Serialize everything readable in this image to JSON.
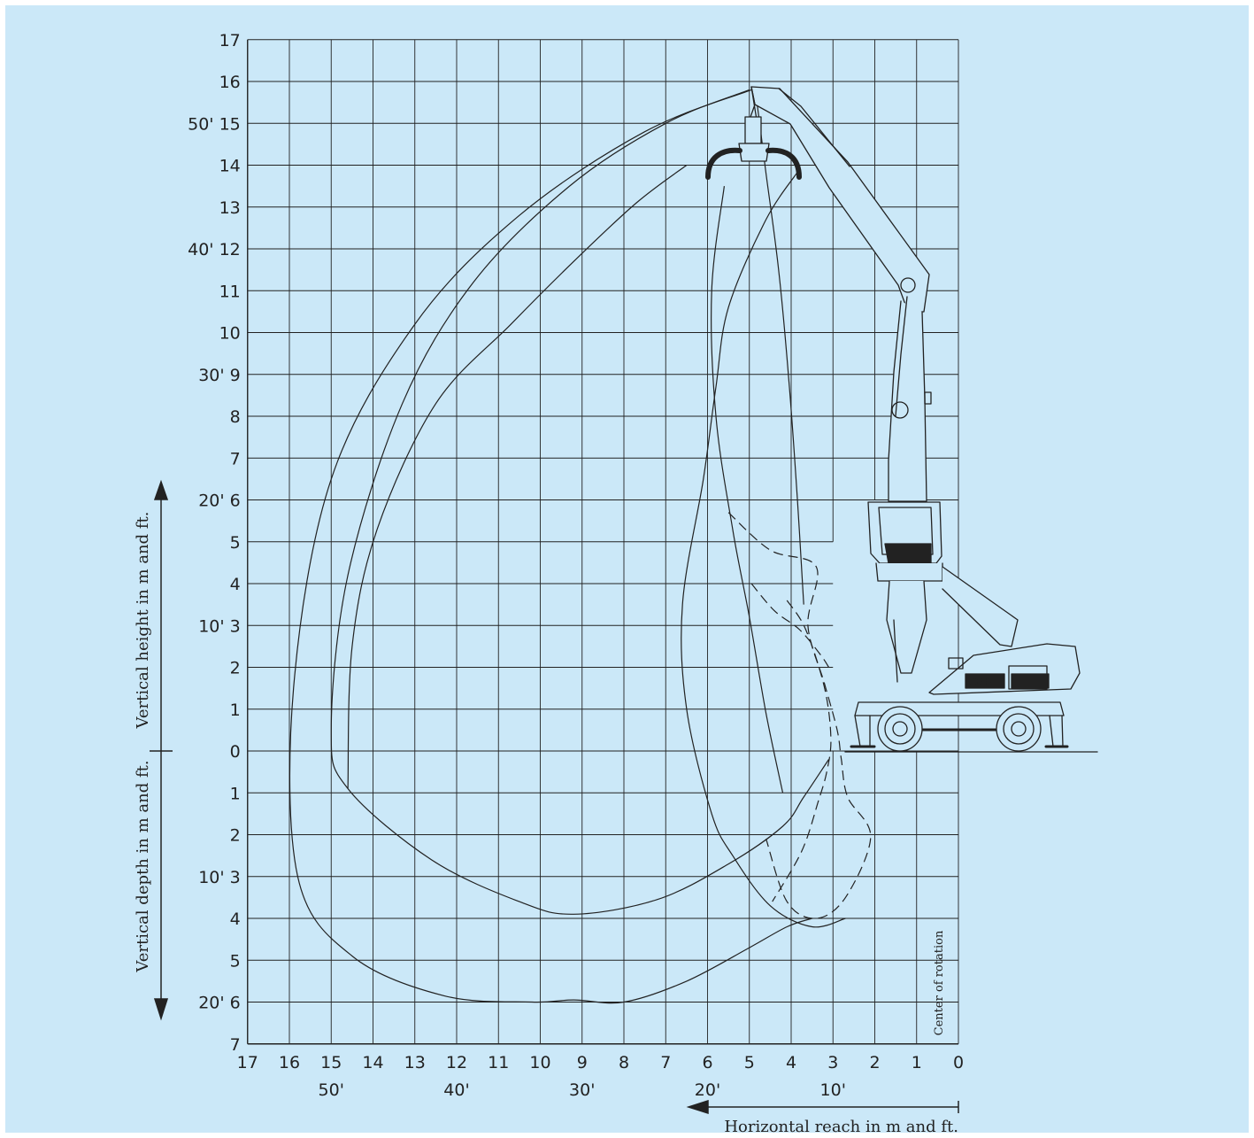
{
  "chart_data": {
    "type": "line",
    "title": "",
    "background_color": "#cbe8f8",
    "grid": true,
    "x_axis": {
      "label": "Horizontal reach in m and ft.",
      "range": [
        17,
        0
      ],
      "direction": "reversed",
      "tick_labels": [
        "17",
        "16",
        "15",
        "14",
        "13",
        "12",
        "11",
        "10",
        "9",
        "8",
        "7",
        "6",
        "5",
        "4",
        "3",
        "2",
        "1",
        "0"
      ],
      "ft_labels": [
        {
          "x": 15,
          "label": "50'"
        },
        {
          "x": 12,
          "label": "40'"
        },
        {
          "x": 9,
          "label": "30'"
        },
        {
          "x": 6,
          "label": "20'"
        },
        {
          "x": 3,
          "label": "10'"
        }
      ]
    },
    "y_axis": {
      "label_up": "Vertical height in m and ft.",
      "label_down": "Vertical depth in m and ft.",
      "range": [
        -7,
        17
      ],
      "ticks": [
        {
          "y": 17,
          "label": "17"
        },
        {
          "y": 16,
          "label": "16"
        },
        {
          "y": 15,
          "label": "50' 15"
        },
        {
          "y": 14,
          "label": "14"
        },
        {
          "y": 13,
          "label": "13"
        },
        {
          "y": 12,
          "label": "40' 12"
        },
        {
          "y": 11,
          "label": "11"
        },
        {
          "y": 10,
          "label": "10"
        },
        {
          "y": 9,
          "label": "30' 9"
        },
        {
          "y": 8,
          "label": "8"
        },
        {
          "y": 7,
          "label": "7"
        },
        {
          "y": 6,
          "label": "20' 6"
        },
        {
          "y": 5,
          "label": "5"
        },
        {
          "y": 4,
          "label": "4"
        },
        {
          "y": 3,
          "label": "10' 3"
        },
        {
          "y": 2,
          "label": "2"
        },
        {
          "y": 1,
          "label": "1"
        },
        {
          "y": 0,
          "label": "0"
        },
        {
          "y": -1,
          "label": "1"
        },
        {
          "y": -2,
          "label": "2"
        },
        {
          "y": -3,
          "label": "10' 3"
        },
        {
          "y": -4,
          "label": "4"
        },
        {
          "y": -5,
          "label": "5"
        },
        {
          "y": -6,
          "label": "20' 6"
        },
        {
          "y": -7,
          "label": "7"
        }
      ]
    },
    "annotations": [
      {
        "text": "Center of rotation",
        "x": 0.5,
        "y": -4.5
      }
    ],
    "series": [
      {
        "style": "solid",
        "x": [
          4.95,
          7.5,
          10.5,
          13,
          15,
          15.9,
          15.8,
          14.5,
          12.3,
          10.2,
          9.2,
          8,
          6.5,
          5,
          4.1,
          3.5
        ],
        "y": [
          15.8,
          14.8,
          12.8,
          10.2,
          6.5,
          1.5,
          -3,
          -4.9,
          -5.85,
          -6,
          -5.95,
          -6,
          -5.5,
          -4.7,
          -4.2,
          -4
        ]
      },
      {
        "style": "solid",
        "x": [
          5,
          7,
          9.3,
          11.6,
          13.3,
          14.6,
          15,
          14.6,
          12.6,
          10.5,
          9.2,
          7.2,
          5.5,
          4.2,
          3.7,
          3.1
        ],
        "y": [
          15.8,
          15,
          13.5,
          11.2,
          8.3,
          4.2,
          0.5,
          -0.9,
          -2.6,
          -3.6,
          -3.9,
          -3.55,
          -2.7,
          -1.8,
          -1.1,
          -0.2
        ]
      },
      {
        "style": "solid",
        "x": [
          5.6,
          5.9,
          5.8,
          5.4,
          5,
          4.6,
          4.2
        ],
        "y": [
          13.5,
          11,
          8,
          5.3,
          3.2,
          0.9,
          -1
        ]
      },
      {
        "style": "solid",
        "x": [
          4.85,
          4.6,
          4.3,
          4.05,
          3.85,
          3.7
        ],
        "y": [
          15.75,
          13.8,
          11.5,
          8.8,
          6,
          3.5
        ]
      },
      {
        "style": "solid",
        "x": [
          6.5,
          7.7,
          9.2,
          10.7,
          12.5,
          13.9,
          14.5,
          14.6
        ],
        "y": [
          14.0,
          13.1,
          11.7,
          10.2,
          8.3,
          5.3,
          2.5,
          -0.9
        ]
      },
      {
        "style": "solid",
        "x": [
          3.8,
          4.6,
          5.5,
          5.8,
          6.1,
          6.6,
          6.5,
          5.9,
          5.4,
          4.5,
          3.5,
          2.7
        ],
        "y": [
          13.9,
          12.7,
          10.6,
          8.7,
          6.5,
          3.5,
          1,
          -1.5,
          -2.5,
          -3.7,
          -4.2,
          -4
        ]
      },
      {
        "style": "dashed",
        "x": [
          5.5,
          4.5,
          3.4,
          3.6,
          3.2,
          2.9,
          2.8,
          2.65,
          2.1,
          2.7,
          3.4,
          4.1,
          4.6
        ],
        "y": [
          5.7,
          4.8,
          4.4,
          3.0,
          1.6,
          0.5,
          -0.2,
          -1.1,
          -2.05,
          -3.5,
          -4.0,
          -3.6,
          -2.1
        ]
      },
      {
        "style": "dashed",
        "x": [
          4.1,
          3.65,
          3.2,
          3.05,
          3.15,
          3.35,
          3.75,
          4.45
        ],
        "y": [
          3.6,
          2.9,
          1.5,
          0.3,
          -0.5,
          -1.2,
          -2.4,
          -3.6
        ]
      },
      {
        "style": "dashed",
        "x": [
          4.95,
          4.4,
          3.8,
          3.3,
          3.1
        ],
        "y": [
          4.0,
          3.35,
          2.9,
          2.3,
          2.0
        ]
      }
    ]
  }
}
